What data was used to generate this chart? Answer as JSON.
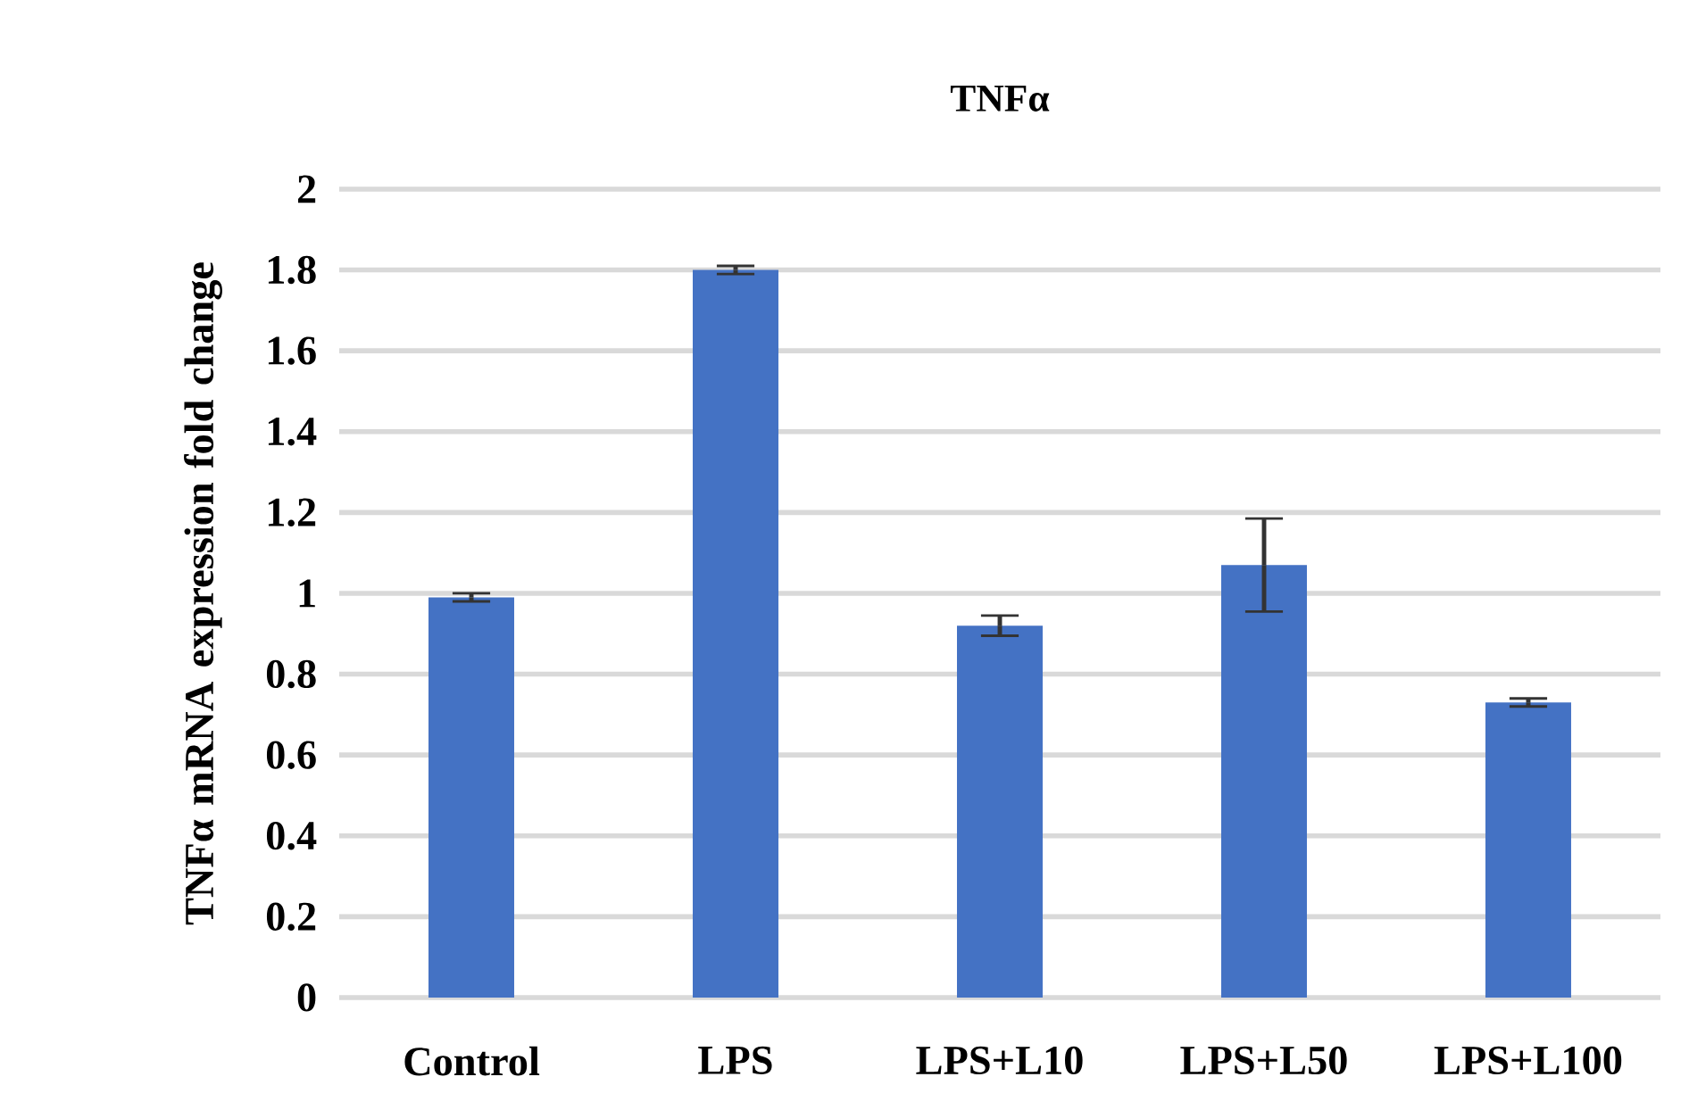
{
  "chart_data": {
    "type": "bar",
    "title": "TNFα",
    "ylabel": "TNFα mRNA expression fold change",
    "categories": [
      "Control",
      "LPS",
      "LPS+L10",
      "LPS+L50",
      "LPS+L100"
    ],
    "values": [
      0.99,
      1.8,
      0.92,
      1.07,
      0.73
    ],
    "errors": [
      0.01,
      0.01,
      0.025,
      0.115,
      0.01
    ],
    "color": "#4472c4",
    "ylim": [
      0,
      2
    ],
    "yticks": [
      0,
      0.2,
      0.4,
      0.6,
      0.8,
      1,
      1.2,
      1.4,
      1.6,
      1.8,
      2
    ],
    "grid": "y"
  }
}
